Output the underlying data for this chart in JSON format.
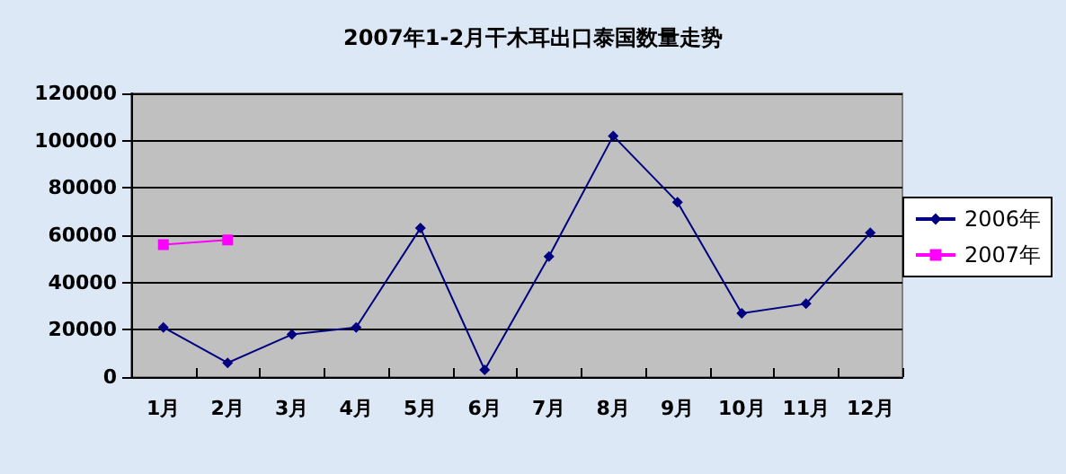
{
  "chart_data": {
    "type": "line",
    "title": "2007年1-2月干木耳出口泰国数量走势",
    "categories": [
      "1月",
      "2月",
      "3月",
      "4月",
      "5月",
      "6月",
      "7月",
      "8月",
      "9月",
      "10月",
      "11月",
      "12月"
    ],
    "series": [
      {
        "name": "2006年",
        "color": "#000080",
        "marker": "diamond",
        "values": [
          21000,
          6000,
          18000,
          21000,
          63000,
          3000,
          51000,
          102000,
          74000,
          27000,
          31000,
          61000
        ]
      },
      {
        "name": "2007年",
        "color": "#ff00ff",
        "marker": "square",
        "values": [
          56000,
          58000,
          null,
          null,
          null,
          null,
          null,
          null,
          null,
          null,
          null,
          null
        ]
      }
    ],
    "ylim": [
      0,
      120000
    ],
    "yticks": [
      0,
      20000,
      40000,
      60000,
      80000,
      100000,
      120000
    ],
    "grid": "y",
    "legend": "right"
  }
}
